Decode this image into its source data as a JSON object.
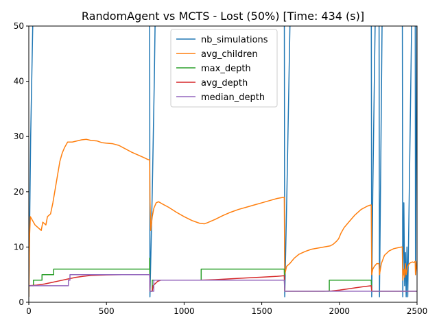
{
  "chart_data": {
    "type": "line",
    "title": "RandomAgent vs MCTS - Lost (50%) [Time: 434 (s)]",
    "xlabel": "",
    "ylabel": "",
    "xlim": [
      0,
      2500
    ],
    "ylim": [
      0,
      50
    ],
    "x_ticks": [
      0,
      500,
      1000,
      1500,
      2000,
      2500
    ],
    "y_ticks": [
      0,
      10,
      20,
      30,
      40,
      50
    ],
    "grid": false,
    "legend_position": "top-center",
    "series": [
      {
        "name": "nb_simulations",
        "color": "#1f77b4",
        "points": [
          [
            0,
            1
          ],
          [
            12,
            30
          ],
          [
            22,
            45
          ],
          [
            32,
            60
          ],
          [
            778,
            60
          ],
          [
            780,
            1
          ],
          [
            795,
            20
          ],
          [
            808,
            40
          ],
          [
            818,
            60
          ],
          [
            1645,
            60
          ],
          [
            1648,
            1
          ],
          [
            1662,
            20
          ],
          [
            1675,
            40
          ],
          [
            1688,
            60
          ],
          [
            2205,
            60
          ],
          [
            2208,
            1
          ],
          [
            2215,
            20
          ],
          [
            2225,
            40
          ],
          [
            2235,
            60
          ],
          [
            2255,
            60
          ],
          [
            2258,
            1
          ],
          [
            2268,
            30
          ],
          [
            2278,
            60
          ],
          [
            2405,
            60
          ],
          [
            2408,
            1
          ],
          [
            2415,
            18
          ],
          [
            2420,
            3
          ],
          [
            2425,
            9
          ],
          [
            2430,
            1
          ],
          [
            2435,
            10
          ],
          [
            2440,
            1
          ],
          [
            2450,
            20
          ],
          [
            2460,
            40
          ],
          [
            2470,
            60
          ],
          [
            2488,
            60
          ],
          [
            2490,
            5
          ],
          [
            2495,
            30
          ],
          [
            2500,
            55
          ]
        ]
      },
      {
        "name": "avg_children",
        "color": "#ff7f0e",
        "points": [
          [
            0,
            1
          ],
          [
            5,
            12
          ],
          [
            10,
            15.5
          ],
          [
            20,
            15
          ],
          [
            40,
            14
          ],
          [
            60,
            13.5
          ],
          [
            80,
            13
          ],
          [
            90,
            14.5
          ],
          [
            110,
            14
          ],
          [
            120,
            15.5
          ],
          [
            140,
            16
          ],
          [
            155,
            18
          ],
          [
            170,
            20.5
          ],
          [
            185,
            23
          ],
          [
            200,
            25.5
          ],
          [
            215,
            27
          ],
          [
            230,
            28
          ],
          [
            250,
            29
          ],
          [
            280,
            29
          ],
          [
            310,
            29.2
          ],
          [
            340,
            29.4
          ],
          [
            370,
            29.5
          ],
          [
            400,
            29.3
          ],
          [
            440,
            29.2
          ],
          [
            470,
            28.9
          ],
          [
            500,
            28.8
          ],
          [
            540,
            28.7
          ],
          [
            580,
            28.4
          ],
          [
            620,
            27.8
          ],
          [
            660,
            27.2
          ],
          [
            700,
            26.7
          ],
          [
            740,
            26.2
          ],
          [
            770,
            25.8
          ],
          [
            778,
            25.8
          ],
          [
            780,
            19
          ],
          [
            785,
            13
          ],
          [
            795,
            15.5
          ],
          [
            805,
            17
          ],
          [
            820,
            18
          ],
          [
            835,
            18.2
          ],
          [
            860,
            17.8
          ],
          [
            900,
            17.2
          ],
          [
            950,
            16.3
          ],
          [
            1000,
            15.5
          ],
          [
            1050,
            14.8
          ],
          [
            1100,
            14.3
          ],
          [
            1130,
            14.2
          ],
          [
            1150,
            14.4
          ],
          [
            1200,
            15
          ],
          [
            1250,
            15.7
          ],
          [
            1300,
            16.3
          ],
          [
            1350,
            16.8
          ],
          [
            1400,
            17.2
          ],
          [
            1450,
            17.6
          ],
          [
            1500,
            18
          ],
          [
            1550,
            18.4
          ],
          [
            1600,
            18.8
          ],
          [
            1640,
            19
          ],
          [
            1645,
            19
          ],
          [
            1648,
            5
          ],
          [
            1660,
            6.5
          ],
          [
            1680,
            7
          ],
          [
            1710,
            8
          ],
          [
            1740,
            8.7
          ],
          [
            1780,
            9.2
          ],
          [
            1820,
            9.6
          ],
          [
            1860,
            9.8
          ],
          [
            1900,
            10
          ],
          [
            1940,
            10.2
          ],
          [
            1960,
            10.5
          ],
          [
            1980,
            11
          ],
          [
            1995,
            11.5
          ],
          [
            2010,
            12.5
          ],
          [
            2030,
            13.5
          ],
          [
            2060,
            14.5
          ],
          [
            2100,
            15.8
          ],
          [
            2140,
            16.8
          ],
          [
            2180,
            17.4
          ],
          [
            2200,
            17.6
          ],
          [
            2205,
            17.6
          ],
          [
            2208,
            5
          ],
          [
            2215,
            6
          ],
          [
            2225,
            6.5
          ],
          [
            2240,
            7
          ],
          [
            2255,
            7
          ],
          [
            2258,
            5
          ],
          [
            2270,
            7
          ],
          [
            2290,
            8.5
          ],
          [
            2320,
            9.3
          ],
          [
            2350,
            9.7
          ],
          [
            2380,
            9.9
          ],
          [
            2400,
            10
          ],
          [
            2405,
            10
          ],
          [
            2408,
            4
          ],
          [
            2415,
            6
          ],
          [
            2420,
            4.5
          ],
          [
            2425,
            7
          ],
          [
            2430,
            5
          ],
          [
            2440,
            6.5
          ],
          [
            2450,
            7
          ],
          [
            2460,
            7.2
          ],
          [
            2470,
            7.3
          ],
          [
            2480,
            7.2
          ],
          [
            2488,
            7.4
          ],
          [
            2490,
            5
          ],
          [
            2500,
            7.5
          ]
        ]
      },
      {
        "name": "max_depth",
        "color": "#2ca02c",
        "points": [
          [
            0,
            3
          ],
          [
            30,
            3
          ],
          [
            30,
            4
          ],
          [
            85,
            4
          ],
          [
            85,
            5
          ],
          [
            160,
            5
          ],
          [
            160,
            6
          ],
          [
            778,
            6
          ],
          [
            778,
            8
          ],
          [
            780,
            2
          ],
          [
            795,
            2
          ],
          [
            795,
            4
          ],
          [
            1110,
            4
          ],
          [
            1110,
            6
          ],
          [
            1645,
            6
          ],
          [
            1648,
            2
          ],
          [
            1935,
            2
          ],
          [
            1935,
            4
          ],
          [
            2205,
            4
          ],
          [
            2208,
            2
          ],
          [
            2500,
            2
          ]
        ]
      },
      {
        "name": "avg_depth",
        "color": "#d62728",
        "points": [
          [
            0,
            3
          ],
          [
            50,
            3.1
          ],
          [
            100,
            3.3
          ],
          [
            150,
            3.6
          ],
          [
            200,
            3.9
          ],
          [
            250,
            4.2
          ],
          [
            300,
            4.5
          ],
          [
            350,
            4.7
          ],
          [
            400,
            4.85
          ],
          [
            450,
            4.9
          ],
          [
            500,
            4.95
          ],
          [
            600,
            5
          ],
          [
            700,
            5
          ],
          [
            778,
            5
          ],
          [
            780,
            2
          ],
          [
            795,
            2
          ],
          [
            800,
            3
          ],
          [
            830,
            3.8
          ],
          [
            850,
            4
          ],
          [
            900,
            4
          ],
          [
            1000,
            4
          ],
          [
            1100,
            4
          ],
          [
            1200,
            4.1
          ],
          [
            1300,
            4.25
          ],
          [
            1400,
            4.4
          ],
          [
            1500,
            4.55
          ],
          [
            1600,
            4.7
          ],
          [
            1645,
            4.8
          ],
          [
            1648,
            2
          ],
          [
            1700,
            2
          ],
          [
            1800,
            2
          ],
          [
            1900,
            2
          ],
          [
            1950,
            2.05
          ],
          [
            2000,
            2.2
          ],
          [
            2050,
            2.4
          ],
          [
            2100,
            2.6
          ],
          [
            2150,
            2.8
          ],
          [
            2205,
            3
          ],
          [
            2208,
            2
          ],
          [
            2500,
            2
          ]
        ]
      },
      {
        "name": "median_depth",
        "color": "#9467bd",
        "points": [
          [
            0,
            3
          ],
          [
            255,
            3
          ],
          [
            255,
            4
          ],
          [
            265,
            4
          ],
          [
            265,
            5
          ],
          [
            778,
            5
          ],
          [
            780,
            2
          ],
          [
            805,
            2
          ],
          [
            805,
            4
          ],
          [
            1645,
            4
          ],
          [
            1648,
            2
          ],
          [
            2500,
            2
          ]
        ]
      }
    ]
  }
}
